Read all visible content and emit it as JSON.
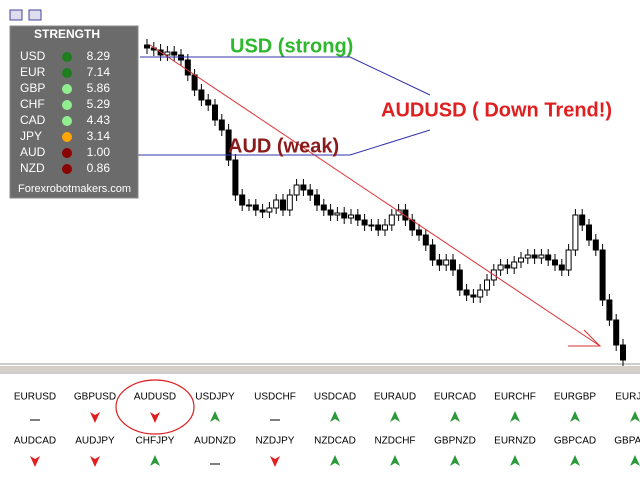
{
  "toolbar_icons": true,
  "strength_panel": {
    "title": "STRENGTH",
    "rows": [
      {
        "currency": "USD",
        "value": "8.29",
        "color": "#1e7d1e"
      },
      {
        "currency": "EUR",
        "value": "7.14",
        "color": "#1e7d1e"
      },
      {
        "currency": "GBP",
        "value": "5.86",
        "color": "#90ee90"
      },
      {
        "currency": "CHF",
        "value": "5.29",
        "color": "#90ee90"
      },
      {
        "currency": "CAD",
        "value": "4.43",
        "color": "#90ee90"
      },
      {
        "currency": "JPY",
        "value": "3.14",
        "color": "#ffa500"
      },
      {
        "currency": "AUD",
        "value": "1.00",
        "color": "#8b0000"
      },
      {
        "currency": "NZD",
        "value": "0.86",
        "color": "#8b0000"
      }
    ],
    "footer": "Forexrobotmakers.com"
  },
  "annotations": {
    "strong": "USD (strong)",
    "weak": "AUD (weak)",
    "pair": "AUDUSD ( Down Trend!)"
  },
  "pairs": [
    [
      {
        "name": "EURUSD",
        "signal": "flat"
      },
      {
        "name": "GBPUSD",
        "signal": "down"
      },
      {
        "name": "AUDUSD",
        "signal": "down"
      },
      {
        "name": "USDJPY",
        "signal": "up"
      },
      {
        "name": "USDCHF",
        "signal": "flat"
      },
      {
        "name": "USDCAD",
        "signal": "up"
      },
      {
        "name": "EURAUD",
        "signal": "up"
      },
      {
        "name": "EURCAD",
        "signal": "up"
      },
      {
        "name": "EURCHF",
        "signal": "up"
      },
      {
        "name": "EURGBP",
        "signal": "up"
      },
      {
        "name": "EURJPY",
        "signal": "up"
      }
    ],
    [
      {
        "name": "AUDCAD",
        "signal": "down"
      },
      {
        "name": "AUDJPY",
        "signal": "down"
      },
      {
        "name": "CHFJPY",
        "signal": "up"
      },
      {
        "name": "AUDNZD",
        "signal": "flat"
      },
      {
        "name": "NZDJPY",
        "signal": "down"
      },
      {
        "name": "NZDCAD",
        "signal": "up"
      },
      {
        "name": "NZDCHF",
        "signal": "up"
      },
      {
        "name": "GBPNZD",
        "signal": "up"
      },
      {
        "name": "EURNZD",
        "signal": "up"
      },
      {
        "name": "GBPCAD",
        "signal": "up"
      },
      {
        "name": "GBPAUD",
        "signal": "up"
      }
    ]
  ],
  "highlight": "AUDUSD"
}
